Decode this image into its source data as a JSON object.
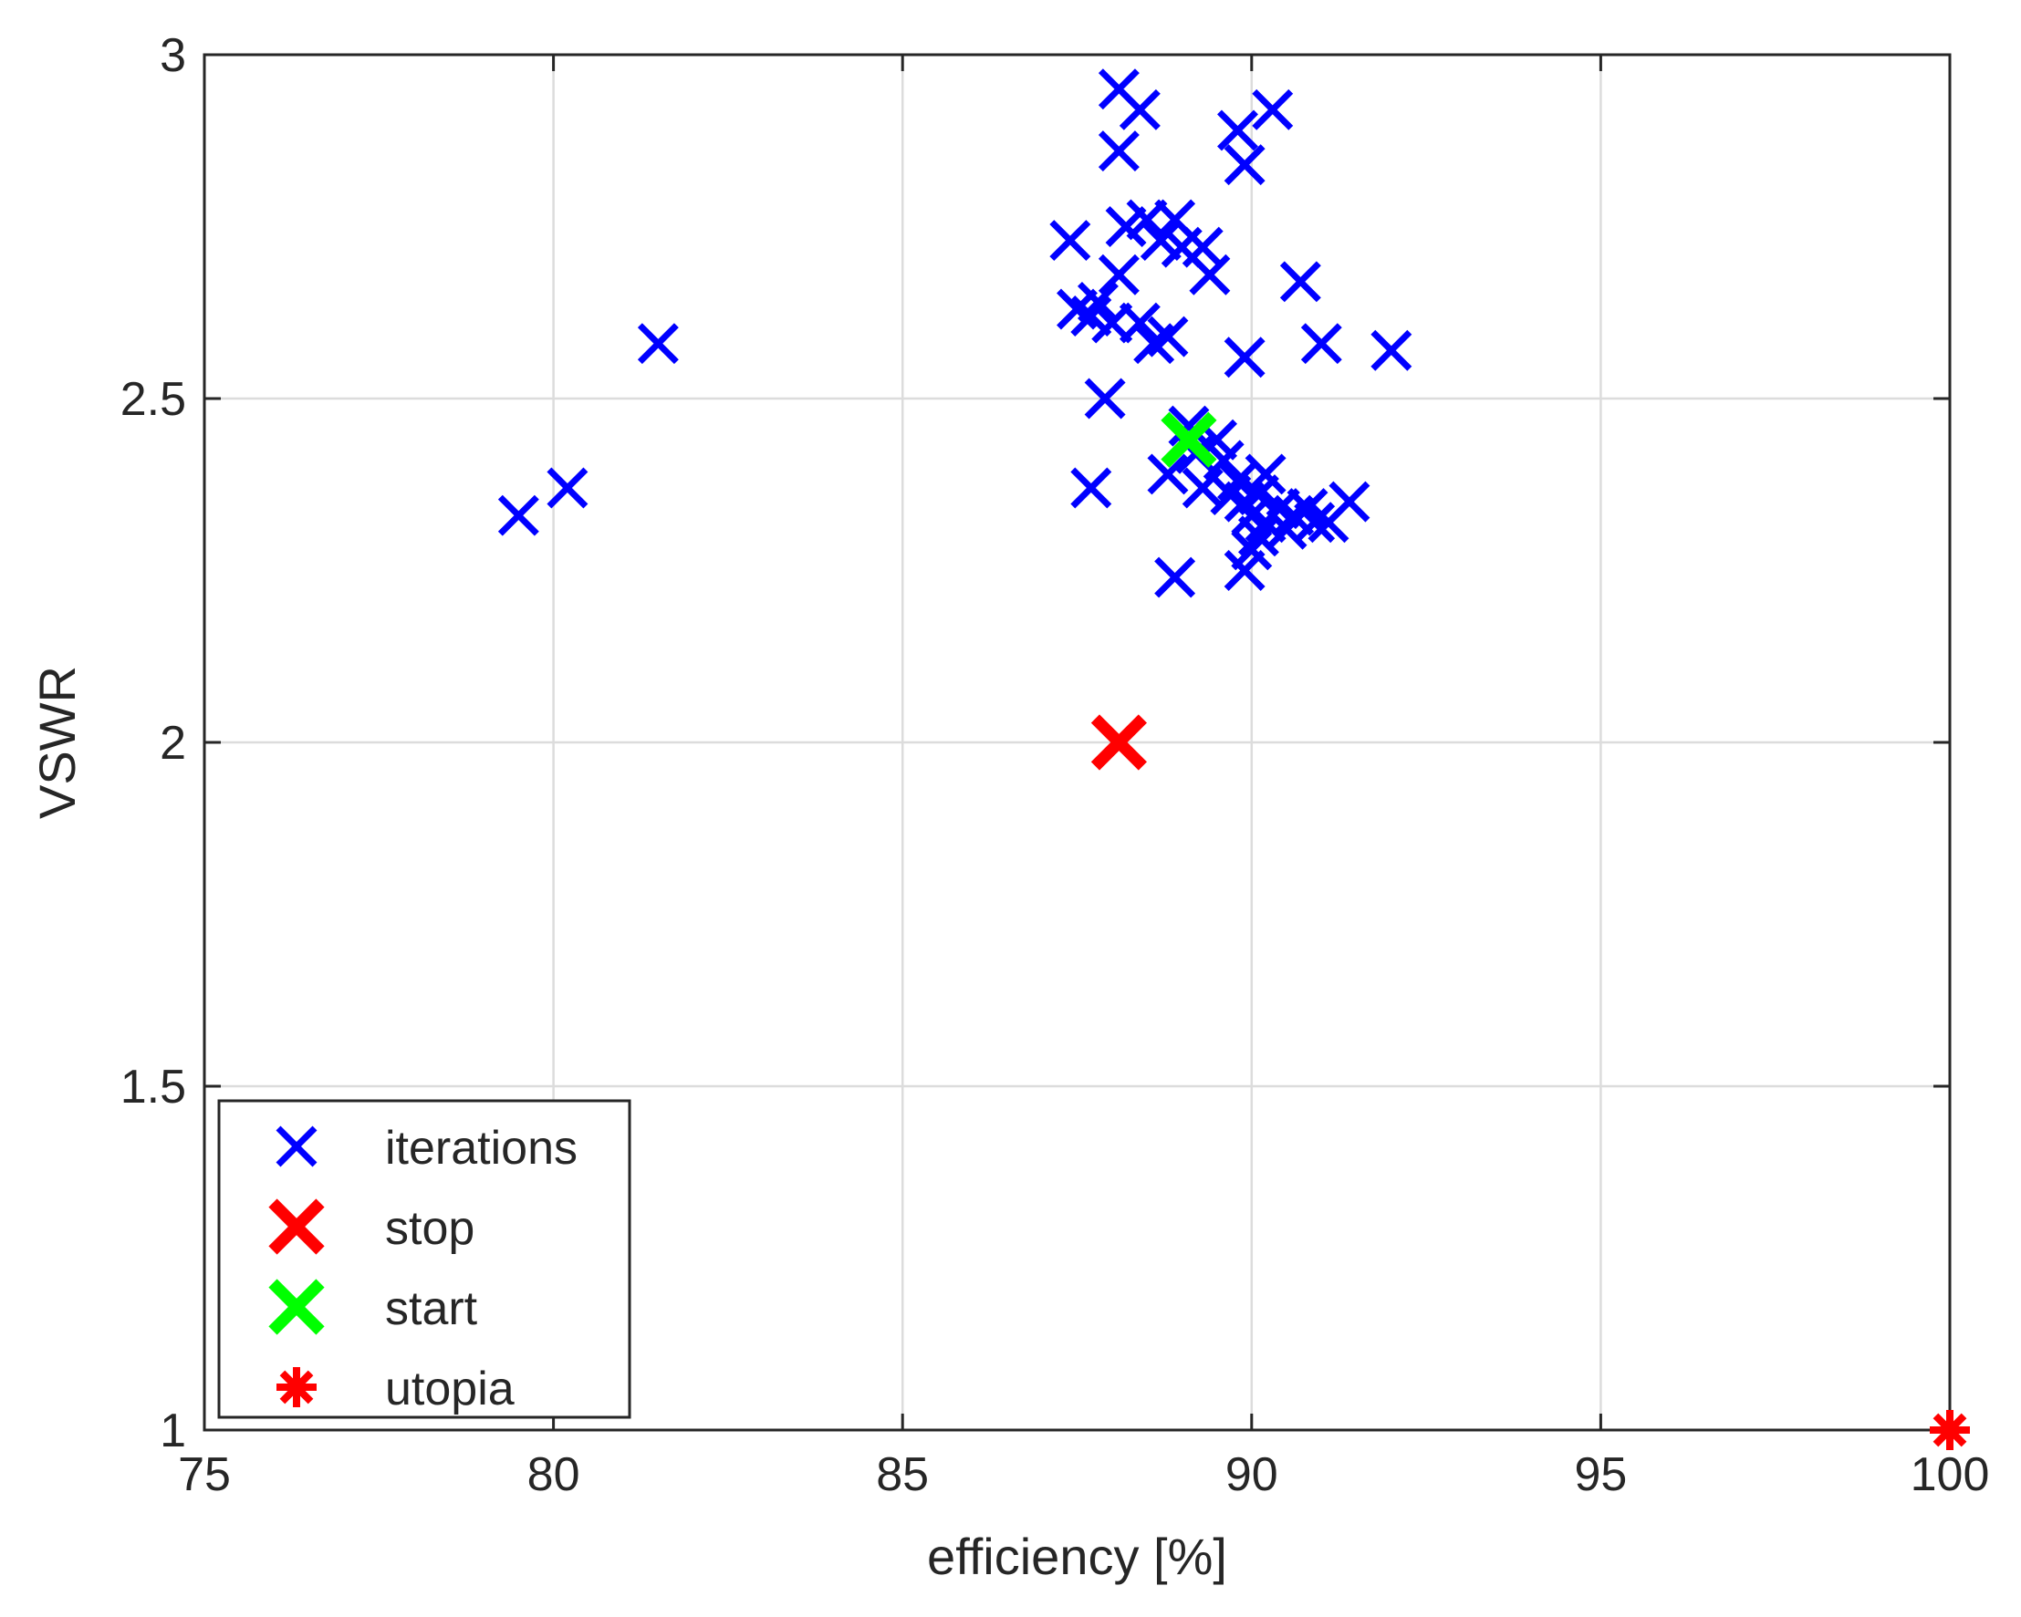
{
  "chart_data": {
    "type": "scatter",
    "title": "",
    "xlabel": "efficiency [%]",
    "ylabel": "VSWR",
    "xlim": [
      75,
      100
    ],
    "ylim": [
      1,
      3
    ],
    "xticks": [
      75,
      80,
      85,
      90,
      95,
      100
    ],
    "yticks": [
      1,
      1.5,
      2,
      2.5,
      3
    ],
    "xtick_labels": [
      "75",
      "80",
      "85",
      "90",
      "95",
      "100"
    ],
    "ytick_labels": [
      "1",
      "1.5",
      "2",
      "2.5",
      "3"
    ],
    "grid": true,
    "legend_position": "bottom-left",
    "series": [
      {
        "name": "iterations",
        "marker": "x",
        "color": "#0000ff",
        "points": [
          [
            79.5,
            2.33
          ],
          [
            80.2,
            2.37
          ],
          [
            81.5,
            2.58
          ],
          [
            87.4,
            2.73
          ],
          [
            87.5,
            2.63
          ],
          [
            87.7,
            2.62
          ],
          [
            87.8,
            2.64
          ],
          [
            87.9,
            2.5
          ],
          [
            87.7,
            2.37
          ],
          [
            88.0,
            2.61
          ],
          [
            88.1,
            2.68
          ],
          [
            88.1,
            2.86
          ],
          [
            88.1,
            2.95
          ],
          [
            88.2,
            2.75
          ],
          [
            88.4,
            2.92
          ],
          [
            88.4,
            2.61
          ],
          [
            88.5,
            2.76
          ],
          [
            88.6,
            2.58
          ],
          [
            88.7,
            2.73
          ],
          [
            88.8,
            2.59
          ],
          [
            88.9,
            2.76
          ],
          [
            88.8,
            2.39
          ],
          [
            88.9,
            2.24
          ],
          [
            89.0,
            2.72
          ],
          [
            89.1,
            2.46
          ],
          [
            89.2,
            2.42
          ],
          [
            89.3,
            2.72
          ],
          [
            89.4,
            2.68
          ],
          [
            89.3,
            2.37
          ],
          [
            89.5,
            2.44
          ],
          [
            89.6,
            2.41
          ],
          [
            89.7,
            2.36
          ],
          [
            89.8,
            2.89
          ],
          [
            89.9,
            2.84
          ],
          [
            89.9,
            2.56
          ],
          [
            89.8,
            2.38
          ],
          [
            89.9,
            2.35
          ],
          [
            90.0,
            2.33
          ],
          [
            90.0,
            2.28
          ],
          [
            89.9,
            2.25
          ],
          [
            90.1,
            2.3
          ],
          [
            90.1,
            2.36
          ],
          [
            90.2,
            2.32
          ],
          [
            90.2,
            2.39
          ],
          [
            90.3,
            2.92
          ],
          [
            90.4,
            2.34
          ],
          [
            90.5,
            2.31
          ],
          [
            90.6,
            2.33
          ],
          [
            90.7,
            2.67
          ],
          [
            90.8,
            2.34
          ],
          [
            90.9,
            2.32
          ],
          [
            91.0,
            2.58
          ],
          [
            91.1,
            2.32
          ],
          [
            91.4,
            2.35
          ],
          [
            92.0,
            2.57
          ]
        ]
      },
      {
        "name": "stop",
        "marker": "x",
        "color": "#ff0000",
        "points": [
          [
            88.1,
            2.0
          ]
        ]
      },
      {
        "name": "start",
        "marker": "x",
        "color": "#00ff00",
        "points": [
          [
            89.1,
            2.44
          ]
        ]
      },
      {
        "name": "utopia",
        "marker": "*",
        "color": "#ff0000",
        "points": [
          [
            100,
            1.0
          ]
        ]
      }
    ]
  }
}
